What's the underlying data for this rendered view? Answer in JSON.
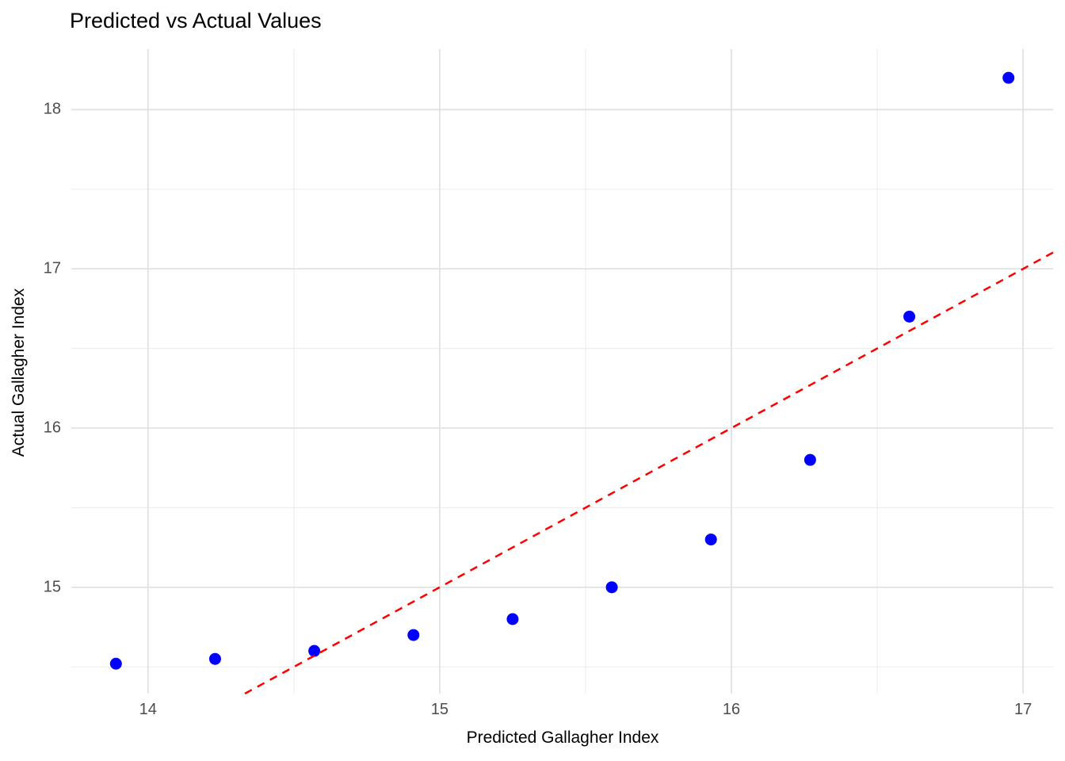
{
  "title": "Predicted vs Actual Values",
  "chart_data": {
    "type": "scatter",
    "title": "Predicted vs Actual Values",
    "xlabel": "Predicted Gallagher Index",
    "ylabel": "Actual Gallagher Index",
    "xlim": [
      13.737,
      17.103
    ],
    "ylim": [
      14.332,
      18.38
    ],
    "x_ticks": [
      14,
      15,
      16,
      17
    ],
    "y_ticks": [
      15,
      16,
      17,
      18
    ],
    "x_minor_gridlines": [
      14.5,
      15.5,
      16.5
    ],
    "y_minor_gridlines": [
      14.5,
      15.5,
      16.5,
      17.5
    ],
    "grid": "major and minor, light gray, no axis lines, white background",
    "legend_position": "none",
    "series": [
      {
        "name": "observations",
        "mark": "point",
        "color": "#0000ff",
        "x": [
          13.89,
          14.23,
          14.57,
          14.91,
          15.25,
          15.59,
          15.93,
          16.27,
          16.61,
          16.95
        ],
        "y": [
          14.52,
          14.55,
          14.6,
          14.7,
          14.8,
          15.0,
          15.3,
          15.8,
          16.7,
          18.2
        ]
      },
      {
        "name": "identity-reference-line",
        "mark": "line",
        "linestyle": "dashed",
        "color": "#ff0000",
        "equation": "y = x",
        "x": [
          14.332,
          17.103
        ],
        "y": [
          14.332,
          17.103
        ]
      }
    ],
    "colors": {
      "point": "#0000ff",
      "reference_line": "#ff0000",
      "grid_major": "#e2e2e2",
      "grid_minor": "#ececec",
      "tick_text": "#4d4d4d",
      "title_text": "#000000",
      "background": "#ffffff"
    }
  }
}
